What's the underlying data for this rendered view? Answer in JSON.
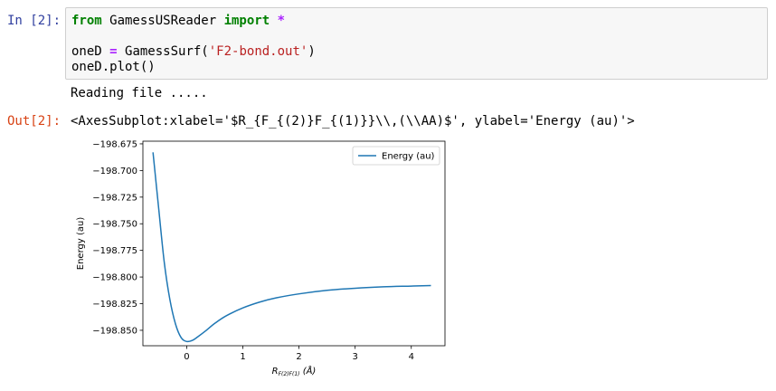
{
  "cell_in": {
    "prompt": "In [2]:",
    "line1": {
      "kw_from": "from",
      "module": " GamessUSReader ",
      "kw_import": "import",
      "star": " *"
    },
    "line2": {
      "var": "oneD ",
      "eq": "=",
      "call": " GamessSurf(",
      "arg": "'F2-bond.out'",
      "close": ")"
    },
    "line3": "oneD.plot()"
  },
  "stdout": "Reading file .....",
  "cell_out": {
    "prompt": "Out[2]:",
    "text": "<AxesSubplot:xlabel='$R_{F_{(2)}F_{(1)}}\\\\,(\\\\AA)$', ylabel='Energy (au)'>"
  },
  "chart_data": {
    "type": "line",
    "xlabel": "R_{F(2)F(1)} (Å)",
    "xlabel_main": "R",
    "xlabel_sub": "F(2)F(1)",
    "xlabel_unit": " (Å)",
    "ylabel": "Energy (au)",
    "xlim": [
      -0.78,
      4.6
    ],
    "ylim": [
      -198.8645,
      -198.6725
    ],
    "xticks": [
      0,
      1,
      2,
      3,
      4
    ],
    "xtick_labels": [
      "0",
      "1",
      "2",
      "3",
      "4"
    ],
    "yticks": [
      -198.675,
      -198.7,
      -198.725,
      -198.75,
      -198.775,
      -198.8,
      -198.825,
      -198.85
    ],
    "ytick_labels": [
      "−198.675",
      "−198.700",
      "−198.725",
      "−198.750",
      "−198.775",
      "−198.800",
      "−198.825",
      "−198.850"
    ],
    "legend_position": "upper-right",
    "series": [
      {
        "name": "Energy (au)",
        "color": "#1f77b4",
        "x": [
          -0.6,
          -0.5,
          -0.4,
          -0.3,
          -0.2,
          -0.1,
          0.0,
          0.1,
          0.2,
          0.35,
          0.5,
          0.7,
          1.0,
          1.3,
          1.6,
          2.0,
          2.5,
          3.0,
          3.5,
          4.0,
          4.35
        ],
        "y": [
          -198.683,
          -198.735,
          -198.786,
          -198.821,
          -198.844,
          -198.8568,
          -198.8605,
          -198.8595,
          -198.856,
          -198.85,
          -198.8435,
          -198.8365,
          -198.829,
          -198.8235,
          -198.8195,
          -198.8158,
          -198.8125,
          -198.8105,
          -198.8092,
          -198.8085,
          -198.808
        ]
      }
    ]
  }
}
